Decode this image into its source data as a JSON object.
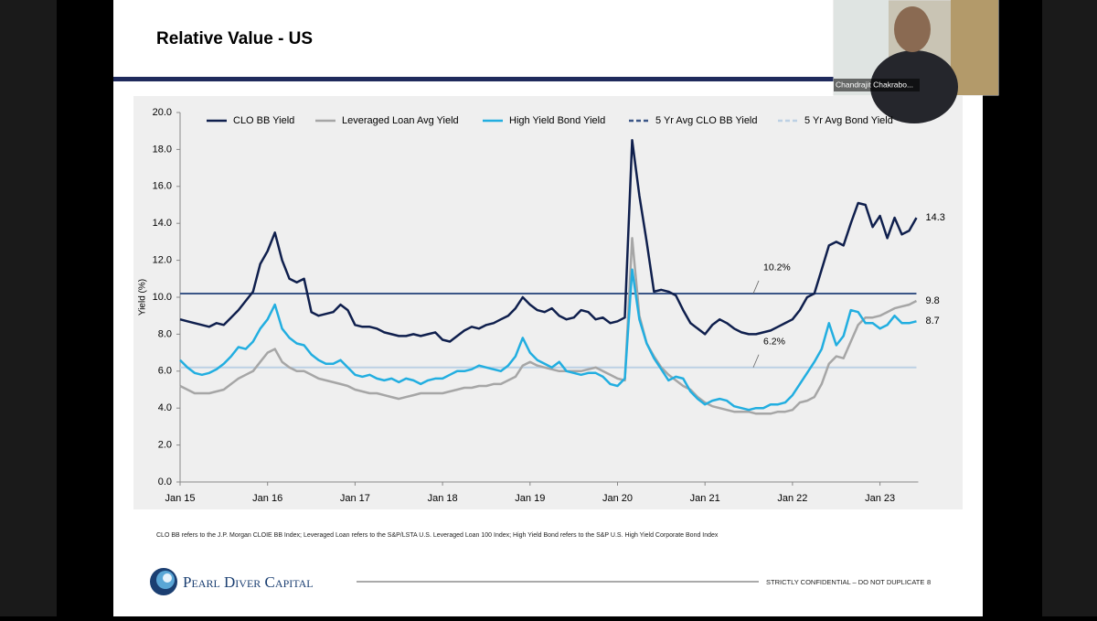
{
  "slide": {
    "title": "Relative Value - US",
    "footnote": "CLO BB refers to the J.P. Morgan CLOIE BB Index; Leveraged Loan refers to the S&P/LSTA U.S. Leveraged Loan 100 Index; High Yield Bond refers to the S&P U.S. High Yield Corporate Bond Index",
    "logo": "Pearl Diver Capital",
    "confidential": "STRICTLY CONFIDENTIAL – DO NOT DUPLICATE",
    "page_number": "8"
  },
  "video": {
    "participant": "Chandrajit Chakrabo..."
  },
  "chart_data": {
    "type": "line",
    "y_label": "Yield (%)",
    "ylim": [
      0,
      20
    ],
    "yticks": [
      {
        "value": 0,
        "label": "0.0"
      },
      {
        "value": 2,
        "label": "2.0"
      },
      {
        "value": 4,
        "label": "4.0"
      },
      {
        "value": 6,
        "label": "6.0"
      },
      {
        "value": 8,
        "label": "8.0"
      },
      {
        "value": 10,
        "label": "10.0"
      },
      {
        "value": 12,
        "label": "12.0"
      },
      {
        "value": 14,
        "label": "14.0"
      },
      {
        "value": 16,
        "label": "16.0"
      },
      {
        "value": 18,
        "label": "18.0"
      },
      {
        "value": 20,
        "label": "20.0"
      }
    ],
    "xticks": [
      {
        "value": "2015-01",
        "label": "Jan 15"
      },
      {
        "value": "2016-01",
        "label": "Jan 16"
      },
      {
        "value": "2017-01",
        "label": "Jan 17"
      },
      {
        "value": "2018-01",
        "label": "Jan 18"
      },
      {
        "value": "2019-01",
        "label": "Jan 19"
      },
      {
        "value": "2020-01",
        "label": "Jan 20"
      },
      {
        "value": "2021-01",
        "label": "Jan 21"
      },
      {
        "value": "2022-01",
        "label": "Jan 22"
      },
      {
        "value": "2023-01",
        "label": "Jan 23"
      }
    ],
    "x": [
      "2015-01",
      "2015-02",
      "2015-03",
      "2015-04",
      "2015-05",
      "2015-06",
      "2015-07",
      "2015-08",
      "2015-09",
      "2015-10",
      "2015-11",
      "2015-12",
      "2016-01",
      "2016-02",
      "2016-03",
      "2016-04",
      "2016-05",
      "2016-06",
      "2016-07",
      "2016-08",
      "2016-09",
      "2016-10",
      "2016-11",
      "2016-12",
      "2017-01",
      "2017-02",
      "2017-03",
      "2017-04",
      "2017-05",
      "2017-06",
      "2017-07",
      "2017-08",
      "2017-09",
      "2017-10",
      "2017-11",
      "2017-12",
      "2018-01",
      "2018-02",
      "2018-03",
      "2018-04",
      "2018-05",
      "2018-06",
      "2018-07",
      "2018-08",
      "2018-09",
      "2018-10",
      "2018-11",
      "2018-12",
      "2019-01",
      "2019-02",
      "2019-03",
      "2019-04",
      "2019-05",
      "2019-06",
      "2019-07",
      "2019-08",
      "2019-09",
      "2019-10",
      "2019-11",
      "2019-12",
      "2020-01",
      "2020-02",
      "2020-03",
      "2020-04",
      "2020-05",
      "2020-06",
      "2020-07",
      "2020-08",
      "2020-09",
      "2020-10",
      "2020-11",
      "2020-12",
      "2021-01",
      "2021-02",
      "2021-03",
      "2021-04",
      "2021-05",
      "2021-06",
      "2021-07",
      "2021-08",
      "2021-09",
      "2021-10",
      "2021-11",
      "2021-12",
      "2022-01",
      "2022-02",
      "2022-03",
      "2022-04",
      "2022-05",
      "2022-06",
      "2022-07",
      "2022-08",
      "2022-09",
      "2022-10",
      "2022-11",
      "2022-12",
      "2023-01",
      "2023-02",
      "2023-03",
      "2023-04",
      "2023-05",
      "2023-06"
    ],
    "series": [
      {
        "name": "CLO BB Yield",
        "color": "#0f1f4d",
        "values": [
          8.8,
          8.7,
          8.6,
          8.5,
          8.4,
          8.6,
          8.5,
          8.9,
          9.3,
          9.8,
          10.3,
          11.8,
          12.5,
          13.5,
          12.0,
          11.0,
          10.8,
          11.0,
          9.2,
          9.0,
          9.1,
          9.2,
          9.6,
          9.3,
          8.5,
          8.4,
          8.4,
          8.3,
          8.1,
          8.0,
          7.9,
          7.9,
          8.0,
          7.9,
          8.0,
          8.1,
          7.7,
          7.6,
          7.9,
          8.2,
          8.4,
          8.3,
          8.5,
          8.6,
          8.8,
          9.0,
          9.4,
          10.0,
          9.6,
          9.3,
          9.2,
          9.4,
          9.0,
          8.8,
          8.9,
          9.3,
          9.2,
          8.8,
          8.9,
          8.6,
          8.7,
          8.9,
          18.5,
          15.5,
          13.0,
          10.3,
          10.4,
          10.3,
          10.1,
          9.3,
          8.6,
          8.3,
          8.0,
          8.5,
          8.8,
          8.6,
          8.3,
          8.1,
          8.0,
          8.0,
          8.1,
          8.2,
          8.4,
          8.6,
          8.8,
          9.3,
          10.0,
          10.2,
          11.5,
          12.8,
          13.0,
          12.8,
          14.0,
          15.1,
          15.0,
          13.8,
          14.4,
          13.2,
          14.3,
          13.4,
          13.6,
          14.3
        ]
      },
      {
        "name": "Leveraged Loan Avg Yield",
        "color": "#a6a6a6",
        "values": [
          5.2,
          5.0,
          4.8,
          4.8,
          4.8,
          4.9,
          5.0,
          5.3,
          5.6,
          5.8,
          6.0,
          6.5,
          7.0,
          7.2,
          6.5,
          6.2,
          6.0,
          6.0,
          5.8,
          5.6,
          5.5,
          5.4,
          5.3,
          5.2,
          5.0,
          4.9,
          4.8,
          4.8,
          4.7,
          4.6,
          4.5,
          4.6,
          4.7,
          4.8,
          4.8,
          4.8,
          4.8,
          4.9,
          5.0,
          5.1,
          5.1,
          5.2,
          5.2,
          5.3,
          5.3,
          5.5,
          5.7,
          6.3,
          6.5,
          6.3,
          6.2,
          6.1,
          6.0,
          6.0,
          6.0,
          6.0,
          6.1,
          6.2,
          6.0,
          5.8,
          5.6,
          5.5,
          13.2,
          9.0,
          7.5,
          6.8,
          6.2,
          5.8,
          5.5,
          5.2,
          5.0,
          4.6,
          4.3,
          4.1,
          4.0,
          3.9,
          3.8,
          3.8,
          3.8,
          3.7,
          3.7,
          3.7,
          3.8,
          3.8,
          3.9,
          4.3,
          4.4,
          4.6,
          5.3,
          6.4,
          6.8,
          6.7,
          7.6,
          8.5,
          8.9,
          8.9,
          9.0,
          9.2,
          9.4,
          9.5,
          9.6,
          9.8
        ]
      },
      {
        "name": "High Yield Bond Yield",
        "color": "#22aee0",
        "values": [
          6.6,
          6.2,
          5.9,
          5.8,
          5.9,
          6.1,
          6.4,
          6.8,
          7.3,
          7.2,
          7.6,
          8.3,
          8.8,
          9.6,
          8.3,
          7.8,
          7.5,
          7.4,
          6.9,
          6.6,
          6.4,
          6.4,
          6.6,
          6.2,
          5.8,
          5.7,
          5.8,
          5.6,
          5.5,
          5.6,
          5.4,
          5.6,
          5.5,
          5.3,
          5.5,
          5.6,
          5.6,
          5.8,
          6.0,
          6.0,
          6.1,
          6.3,
          6.2,
          6.1,
          6.0,
          6.3,
          6.8,
          7.8,
          7.0,
          6.6,
          6.4,
          6.2,
          6.5,
          6.0,
          5.9,
          5.8,
          5.9,
          5.9,
          5.7,
          5.3,
          5.2,
          5.6,
          11.5,
          8.8,
          7.5,
          6.7,
          6.1,
          5.5,
          5.7,
          5.6,
          4.9,
          4.5,
          4.2,
          4.4,
          4.5,
          4.4,
          4.1,
          4.0,
          3.9,
          4.0,
          4.0,
          4.2,
          4.2,
          4.3,
          4.7,
          5.3,
          5.9,
          6.5,
          7.2,
          8.6,
          7.4,
          7.9,
          9.3,
          9.2,
          8.6,
          8.6,
          8.3,
          8.5,
          9.0,
          8.6,
          8.6,
          8.7
        ]
      }
    ],
    "reference_lines": [
      {
        "name": "5 Yr Avg CLO BB Yield",
        "color": "#3b5687",
        "value": 10.2,
        "label": "10.2%"
      },
      {
        "name": "5 Yr Avg Bond Yield",
        "color": "#bcd0e4",
        "value": 6.2,
        "label": "6.2%"
      }
    ]
  }
}
